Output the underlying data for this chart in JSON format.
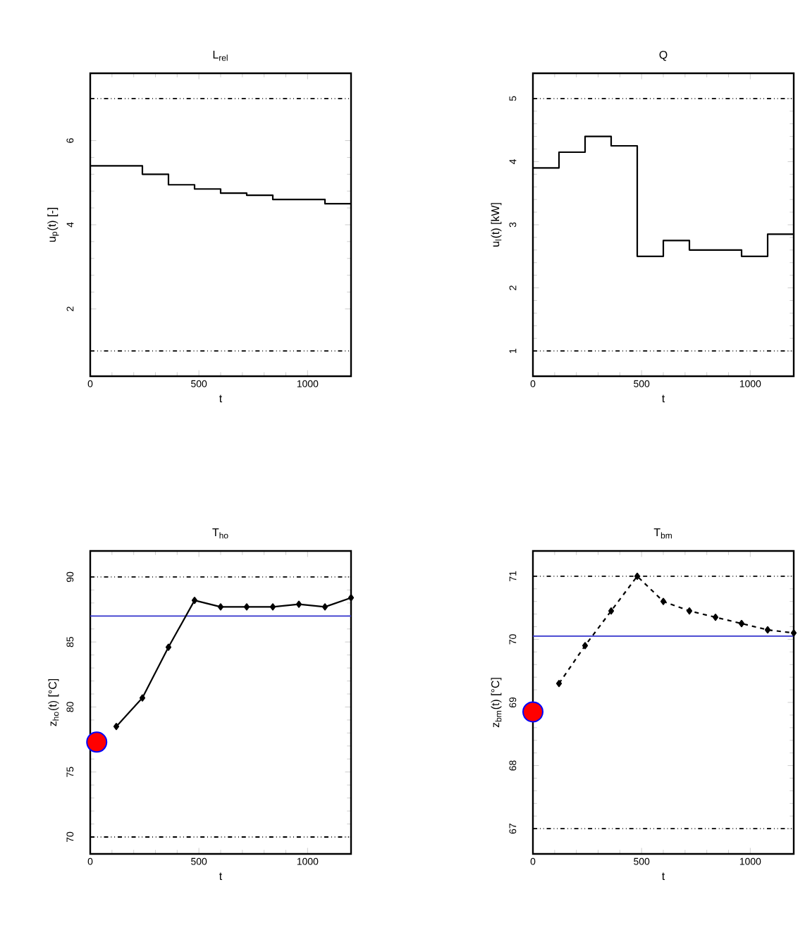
{
  "chart_data": [
    {
      "type": "step",
      "title": "L$_{rel}$",
      "xlabel": "t",
      "ylabel": "u$_{p}$(t) [-]",
      "xlim": [
        0,
        1200
      ],
      "ylim": [
        0.4,
        7.6
      ],
      "xticks": [
        0,
        500,
        1000
      ],
      "yticks": [
        2,
        4,
        6
      ],
      "grid": false,
      "series": [
        {
          "color": "#000000",
          "x": [
            0,
            120,
            240,
            360,
            480,
            600,
            720,
            840,
            960,
            1080,
            1200
          ],
          "values": [
            5.4,
            5.4,
            5.2,
            4.95,
            4.85,
            4.75,
            4.7,
            4.6,
            4.6,
            4.5,
            4.5
          ]
        }
      ],
      "ref_lines": [
        {
          "axis": "y",
          "value": 7,
          "color": "#000000",
          "line_style": "dashdotdotted"
        },
        {
          "axis": "y",
          "value": 1,
          "color": "#000000",
          "line_style": "dashdotdotted"
        }
      ]
    },
    {
      "type": "step",
      "title": "Q",
      "xlabel": "t",
      "ylabel": "u$_{l}$(t) [kW]",
      "xlim": [
        0,
        1200
      ],
      "ylim": [
        0.6,
        5.4
      ],
      "xticks": [
        0,
        500,
        1000
      ],
      "yticks": [
        1,
        2,
        3,
        4,
        5
      ],
      "grid": false,
      "series": [
        {
          "color": "#000000",
          "x": [
            0,
            120,
            240,
            360,
            480,
            600,
            720,
            840,
            960,
            1080,
            1200
          ],
          "values": [
            3.9,
            4.15,
            4.4,
            4.25,
            2.5,
            2.75,
            2.6,
            2.6,
            2.5,
            2.85,
            2.85
          ]
        }
      ],
      "ref_lines": [
        {
          "axis": "y",
          "value": 5,
          "color": "#000000",
          "line_style": "dashdotdotted"
        },
        {
          "axis": "y",
          "value": 1,
          "color": "#000000",
          "line_style": "dashdotdotted"
        }
      ]
    },
    {
      "type": "line",
      "title": "T$_{ho}$",
      "xlabel": "t",
      "ylabel": "z$_{ho}$(t) [°C]",
      "xlim": [
        0,
        1200
      ],
      "ylim": [
        68.7,
        92
      ],
      "xticks": [
        0,
        500,
        1000
      ],
      "yticks": [
        70,
        75,
        80,
        85,
        90
      ],
      "grid": false,
      "series": [
        {
          "color": "#000000",
          "marker": "diamond",
          "line_style": "solid",
          "x": [
            120,
            240,
            360,
            480,
            600,
            720,
            840,
            960,
            1080,
            1200
          ],
          "values": [
            78.5,
            80.7,
            84.6,
            88.2,
            87.7,
            87.7,
            87.7,
            87.9,
            87.7,
            88.4
          ]
        },
        {
          "type": "scatter",
          "color": "#ff0000",
          "marker": "circle",
          "x": [
            30
          ],
          "values": [
            77.3
          ]
        }
      ],
      "ref_lines": [
        {
          "axis": "y",
          "value": 90,
          "color": "#000000",
          "line_style": "dashdotdotted"
        },
        {
          "axis": "y",
          "value": 70,
          "color": "#000000",
          "line_style": "dashdotdotted"
        },
        {
          "axis": "y",
          "value": 87,
          "color": "#3333cc",
          "line_style": "solid"
        }
      ]
    },
    {
      "type": "line",
      "title": "T$_{bm}$",
      "xlabel": "t",
      "ylabel": "z$_{bm}$(t) [°C]",
      "xlim": [
        0,
        1200
      ],
      "ylim": [
        66.6,
        71.4
      ],
      "xticks": [
        0,
        500,
        1000
      ],
      "yticks": [
        67,
        68,
        69,
        70,
        71
      ],
      "grid": false,
      "series": [
        {
          "color": "#000000",
          "marker": "diamond",
          "line_style": "dashed",
          "x": [
            120,
            240,
            360,
            480,
            600,
            720,
            840,
            960,
            1080,
            1200
          ],
          "values": [
            69.3,
            69.9,
            70.45,
            71.0,
            70.6,
            70.45,
            70.35,
            70.25,
            70.15,
            70.1
          ]
        },
        {
          "type": "scatter",
          "color": "#ff0000",
          "marker": "circle",
          "x": [
            0
          ],
          "values": [
            68.85
          ]
        }
      ],
      "ref_lines": [
        {
          "axis": "y",
          "value": 71,
          "color": "#000000",
          "line_style": "dashdotdotted"
        },
        {
          "axis": "y",
          "value": 67,
          "color": "#000000",
          "line_style": "dashdotdotted"
        },
        {
          "axis": "y",
          "value": 70.05,
          "color": "#3333cc",
          "line_style": "solid"
        }
      ]
    }
  ]
}
